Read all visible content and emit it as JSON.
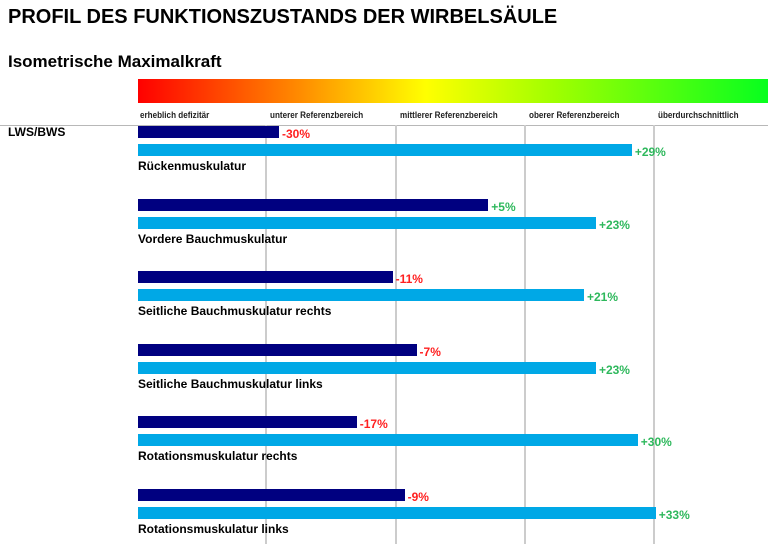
{
  "title": "PROFIL DES FUNKTIONSZUSTANDS DER WIRBELSÄULE",
  "subtitle": "Isometrische Maximalkraft",
  "colors": {
    "dark_bar": "#000080",
    "light_bar": "#00a8e6",
    "negative_text": "#ff2020",
    "positive_text": "#2eb85c"
  },
  "chart_data": {
    "type": "bar",
    "orientation": "horizontal",
    "title": "Isometrische Maximalkraft",
    "group": "LWS/BWS",
    "scale_zones": [
      "erheblich defizitär",
      "unterer Referenzbereich",
      "mittlerer Referenzbereich",
      "oberer Referenzbereich",
      "überdurchschnittlich"
    ],
    "unit": "%",
    "categories": [
      "Rückenmuskulatur",
      "Vordere Bauchmuskulatur",
      "Seitliche Bauchmuskulatur rechts",
      "Seitliche Bauchmuskulatur links",
      "Rotationsmuskulatur rechts",
      "Rotationsmuskulatur links"
    ],
    "series": [
      {
        "name": "dark",
        "values": [
          -30,
          5,
          -11,
          -7,
          -17,
          -9
        ],
        "labels": [
          "-30%",
          "+5%",
          "-11%",
          "-7%",
          "-17%",
          "-9%"
        ]
      },
      {
        "name": "light",
        "values": [
          29,
          23,
          21,
          23,
          30,
          33
        ],
        "labels": [
          "+29%",
          "+23%",
          "+21%",
          "+23%",
          "+30%",
          "+33%"
        ]
      }
    ],
    "grid": true
  }
}
